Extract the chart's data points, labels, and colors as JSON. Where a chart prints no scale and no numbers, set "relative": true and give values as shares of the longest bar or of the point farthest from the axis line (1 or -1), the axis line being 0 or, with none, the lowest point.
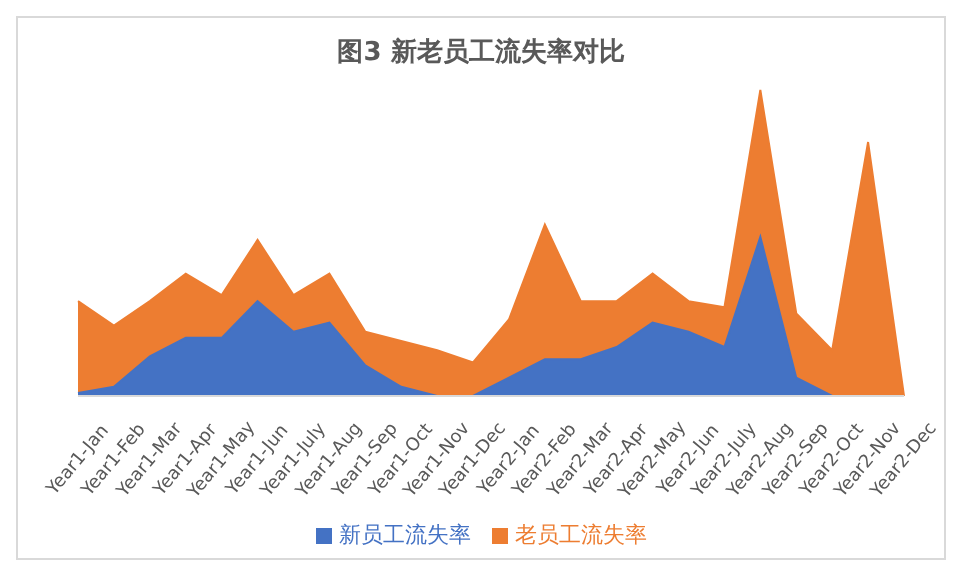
{
  "chart_data": {
    "type": "area",
    "title": "图3 新老员工流失率对比",
    "relative": true,
    "legend": "bottom",
    "grid": false,
    "categories": [
      "Year1-Jan",
      "Year1-Feb",
      "Year1-Mar",
      "Year1-Apr",
      "Year1-May",
      "Year1-Jun",
      "Year1-July",
      "Year1-Aug",
      "Year1-Sep",
      "Year1-Oct",
      "Year1-Nov",
      "Year1-Dec",
      "Year2-Jan",
      "Year2-Feb",
      "Year2-Mar",
      "Year2-Apr",
      "Year2-May",
      "Year2-Jun",
      "Year2-July",
      "Year2-Aug",
      "Year2-Sep",
      "Year2-Oct",
      "Year2-Nov",
      "Year2-Dec"
    ],
    "series": [
      {
        "name": "新员工流失率",
        "color": "#4472c4",
        "values": [
          0.01,
          0.03,
          0.13,
          0.19,
          0.19,
          0.31,
          0.21,
          0.24,
          0.1,
          0.03,
          0,
          0,
          0.06,
          0.12,
          0.12,
          0.16,
          0.24,
          0.21,
          0.16,
          0.52,
          0.06,
          0,
          0,
          0
        ]
      },
      {
        "name": "老员工流失率",
        "color": "#ed7d31",
        "values": [
          0.31,
          0.23,
          0.31,
          0.4,
          0.33,
          0.51,
          0.33,
          0.4,
          0.21,
          0.18,
          0.15,
          0.11,
          0.25,
          0.56,
          0.31,
          0.31,
          0.4,
          0.31,
          0.29,
          1,
          0.27,
          0.15,
          0.83,
          0
        ]
      }
    ]
  }
}
